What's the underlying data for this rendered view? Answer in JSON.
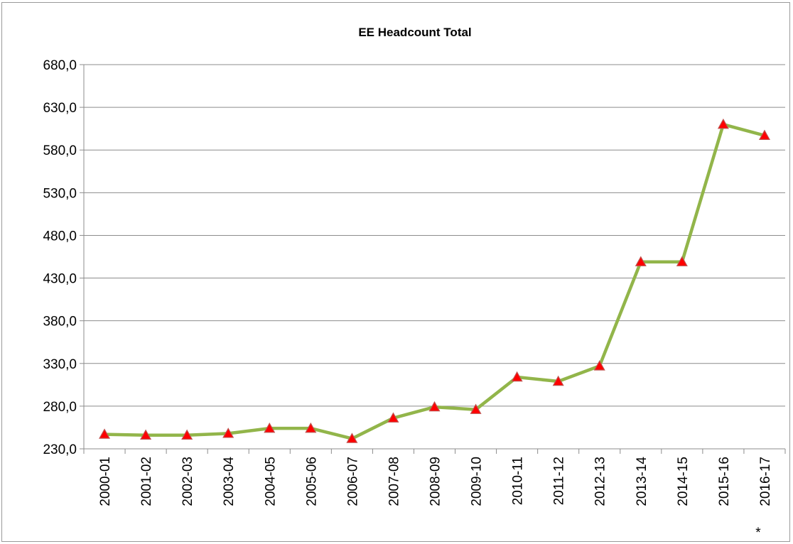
{
  "chart_data": {
    "type": "line",
    "title": "EE Headcount Total",
    "categories": [
      "2000-01",
      "2001-02",
      "2002-03",
      "2003-04",
      "2004-05",
      "2005-06",
      "2006-07",
      "2007-08",
      "2008-09",
      "2009-10",
      "2010-11",
      "2011-12",
      "2012-13",
      "2013-14",
      "2014-15",
      "2015-16",
      "2016-17"
    ],
    "category_note": "*",
    "series": [
      {
        "values": [
          247,
          246,
          246,
          248,
          254,
          254,
          242,
          266,
          279,
          276,
          314,
          309,
          327,
          449,
          449,
          610,
          597
        ]
      }
    ],
    "ylim": [
      230,
      680
    ],
    "yticks": [
      "230,0",
      "280,0",
      "330,0",
      "380,0",
      "430,0",
      "480,0",
      "530,0",
      "580,0",
      "630,0",
      "680,0"
    ],
    "grid": true,
    "colors": {
      "line": "#92b54a",
      "marker_fill": "#ff0000",
      "marker_stroke": "#c0504d"
    }
  }
}
